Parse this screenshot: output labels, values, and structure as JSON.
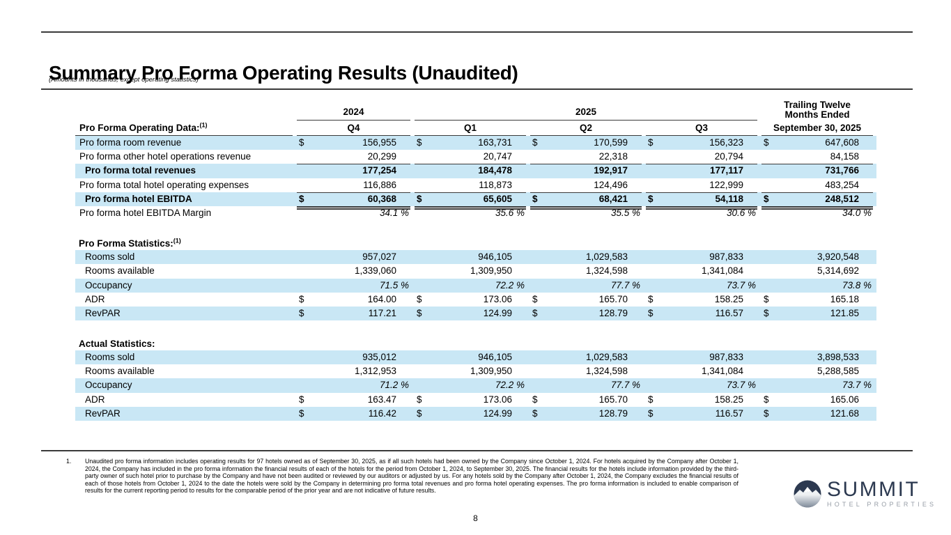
{
  "page": {
    "title": "Summary Pro Forma Operating Results (Unaudited)",
    "subtitle": "(Amounts in thousands, except operating statistics)",
    "page_number": "8"
  },
  "colors": {
    "row_stripe": "#c9e7f5",
    "rule": "#3a3a3a",
    "logo_navy": "#2c3950",
    "logo_gray": "#979ea7"
  },
  "table": {
    "col_groups": [
      {
        "label": "2024"
      },
      {
        "label": "2025"
      }
    ],
    "ttm_header": [
      "Trailing Twelve",
      "Months Ended"
    ],
    "columns": [
      "Q4",
      "Q1",
      "Q2",
      "Q3",
      "September 30, 2025"
    ],
    "sections": [
      {
        "heading": "Pro Forma Operating Data:",
        "heading_sup": "(1)",
        "heading_inline": true,
        "rows": [
          {
            "label": "Pro forma room revenue",
            "shade": true,
            "dollar": true,
            "values": [
              "156,955",
              "163,731",
              "170,599",
              "156,323",
              "647,608"
            ]
          },
          {
            "label": "Pro forma other hotel operations revenue",
            "uline": true,
            "values": [
              "20,299",
              "20,747",
              "22,318",
              "20,794",
              "84,158"
            ]
          },
          {
            "label": "Pro forma total revenues",
            "bold": true,
            "indent": true,
            "shade": true,
            "values": [
              "177,254",
              "184,478",
              "192,917",
              "177,117",
              "731,766"
            ]
          },
          {
            "label": "Pro forma total hotel operating expenses",
            "uline": true,
            "values": [
              "116,886",
              "118,873",
              "124,496",
              "122,999",
              "483,254"
            ]
          },
          {
            "label": "Pro forma hotel EBITDA",
            "bold": true,
            "indent": true,
            "shade": true,
            "dollar": true,
            "dbl": true,
            "values": [
              "60,368",
              "65,605",
              "68,421",
              "54,118",
              "248,512"
            ]
          },
          {
            "label": "Pro forma hotel EBITDA Margin",
            "pct": true,
            "values": [
              "34.1 %",
              "35.6 %",
              "35.5 %",
              "30.6 %",
              "34.0 %"
            ]
          }
        ]
      },
      {
        "heading": "Pro Forma Statistics:",
        "heading_sup": "(1)",
        "rows": [
          {
            "label": "Rooms sold",
            "indent": true,
            "shade": true,
            "values": [
              "957,027",
              "946,105",
              "1,029,583",
              "987,833",
              "3,920,548"
            ]
          },
          {
            "label": "Rooms available",
            "indent": true,
            "values": [
              "1,339,060",
              "1,309,950",
              "1,324,598",
              "1,341,084",
              "5,314,692"
            ]
          },
          {
            "label": "Occupancy",
            "indent": true,
            "shade": true,
            "pct": true,
            "values": [
              "71.5 %",
              "72.2 %",
              "77.7 %",
              "73.7 %",
              "73.8 %"
            ]
          },
          {
            "label": "ADR",
            "indent": true,
            "dollar": true,
            "values": [
              "164.00",
              "173.06",
              "165.70",
              "158.25",
              "165.18"
            ]
          },
          {
            "label": "RevPAR",
            "indent": true,
            "shade": true,
            "dollar": true,
            "values": [
              "117.21",
              "124.99",
              "128.79",
              "116.57",
              "121.85"
            ]
          }
        ]
      },
      {
        "heading": "Actual Statistics:",
        "heading_sup": "",
        "rows": [
          {
            "label": "Rooms sold",
            "indent": true,
            "shade": true,
            "values": [
              "935,012",
              "946,105",
              "1,029,583",
              "987,833",
              "3,898,533"
            ]
          },
          {
            "label": "Rooms available",
            "indent": true,
            "values": [
              "1,312,953",
              "1,309,950",
              "1,324,598",
              "1,341,084",
              "5,288,585"
            ]
          },
          {
            "label": "Occupancy",
            "indent": true,
            "shade": true,
            "pct": true,
            "values": [
              "71.2 %",
              "72.2 %",
              "77.7 %",
              "73.7 %",
              "73.7 %"
            ]
          },
          {
            "label": "ADR",
            "indent": true,
            "dollar": true,
            "values": [
              "163.47",
              "173.06",
              "165.70",
              "158.25",
              "165.06"
            ]
          },
          {
            "label": "RevPAR",
            "indent": true,
            "shade": true,
            "dollar": true,
            "values": [
              "116.42",
              "124.99",
              "128.79",
              "116.57",
              "121.68"
            ]
          }
        ]
      }
    ],
    "dollar_sign": "$"
  },
  "footnote": {
    "number": "1.",
    "text": "Unaudited pro forma information includes operating results for 97 hotels owned as of September 30, 2025, as if all such hotels had been owned by the Company since October 1, 2024. For hotels acquired by the Company after October 1, 2024, the Company has included in the pro forma information the financial results of each of the hotels for the period from October 1, 2024, to September 30, 2025. The financial results for the hotels include information provided by the third-party owner of such hotel prior to purchase by the Company and have not been audited or reviewed by our auditors or adjusted by us. For any hotels sold by the Company after October 1, 2024, the Company excludes the financial results of each of those hotels from October 1, 2024 to the date the hotels were sold by the Company in determining pro forma total revenues and pro forma hotel operating expenses. The pro forma information is included to enable comparison of results for the current reporting period to results for the comparable period of the prior year and are not indicative of future results."
  },
  "logo": {
    "name": "SUMMIT",
    "tagline": "HOTEL PROPERTIES"
  }
}
